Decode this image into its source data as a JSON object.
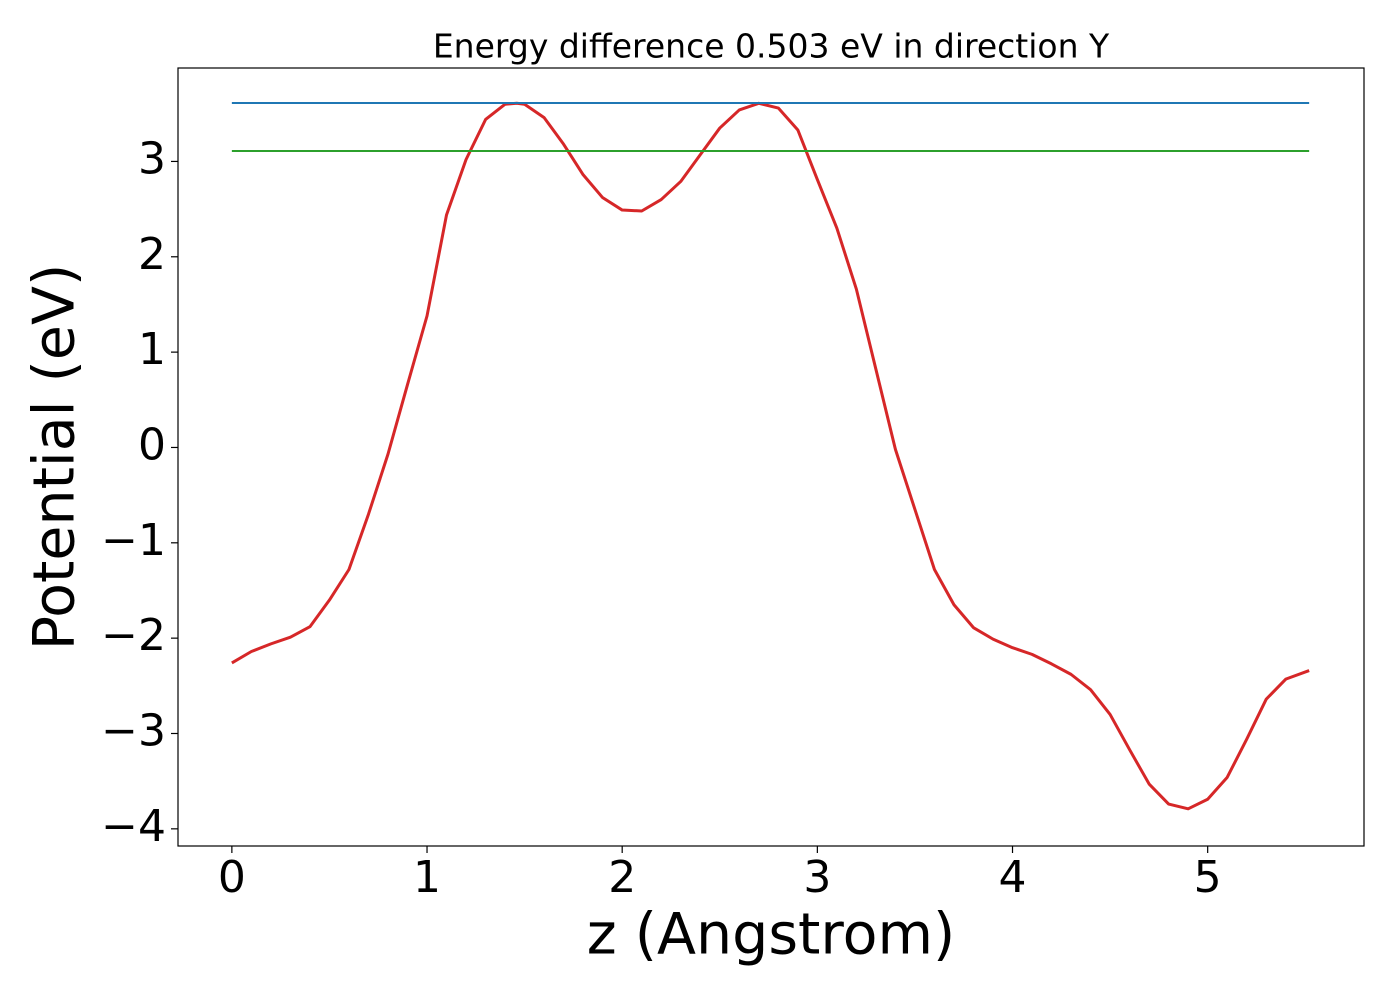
{
  "chart_data": {
    "type": "line",
    "title": "Energy difference 0.503 eV in direction Y",
    "xlabel": "z (Angstrom)",
    "ylabel": "Potential (eV)",
    "xlim": [
      -0.276,
      5.801
    ],
    "ylim": [
      -4.18,
      3.98
    ],
    "xticks": [
      0,
      1,
      2,
      3,
      4,
      5
    ],
    "yticks": [
      {
        "value": -4,
        "label": "−4"
      },
      {
        "value": -3,
        "label": "−3"
      },
      {
        "value": -2,
        "label": "−2"
      },
      {
        "value": -1,
        "label": "−1"
      },
      0,
      1,
      2,
      3
    ],
    "series": [
      {
        "color": "#d62728",
        "x": [
          0,
          0.1,
          0.2,
          0.3,
          0.4,
          0.5,
          0.6,
          0.7,
          0.8,
          0.9,
          1.0,
          1.1,
          1.2,
          1.3,
          1.4,
          1.46,
          1.5,
          1.6,
          1.7,
          1.8,
          1.9,
          2.0,
          2.1,
          2.2,
          2.3,
          2.4,
          2.5,
          2.6,
          2.7,
          2.8,
          2.9,
          3.0,
          3.1,
          3.2,
          3.3,
          3.4,
          3.5,
          3.6,
          3.7,
          3.8,
          3.9,
          4.0,
          4.1,
          4.2,
          4.3,
          4.4,
          4.5,
          4.6,
          4.7,
          4.8,
          4.9,
          5.0,
          5.1,
          5.2,
          5.3,
          5.4,
          5.52
        ],
        "values": [
          -2.26,
          -2.14,
          -2.06,
          -1.99,
          -1.88,
          -1.6,
          -1.28,
          -0.7,
          -0.07,
          0.66,
          1.38,
          2.44,
          3.02,
          3.44,
          3.6,
          3.61,
          3.6,
          3.46,
          3.18,
          2.86,
          2.62,
          2.49,
          2.48,
          2.6,
          2.79,
          3.07,
          3.35,
          3.54,
          3.61,
          3.56,
          3.33,
          2.81,
          2.3,
          1.66,
          0.82,
          -0.02,
          -0.65,
          -1.28,
          -1.65,
          -1.89,
          -2.01,
          -2.1,
          -2.17,
          -2.27,
          -2.38,
          -2.54,
          -2.8,
          -3.17,
          -3.53,
          -3.74,
          -3.79,
          -3.69,
          -3.46,
          -3.06,
          -2.64,
          -2.43,
          -2.34
        ]
      },
      {
        "color": "#1f77b4",
        "x": [
          0,
          5.52
        ],
        "values": [
          3.613,
          3.613
        ]
      },
      {
        "color": "#2ca02c",
        "x": [
          0,
          5.52
        ],
        "values": [
          3.11,
          3.11
        ]
      }
    ]
  }
}
